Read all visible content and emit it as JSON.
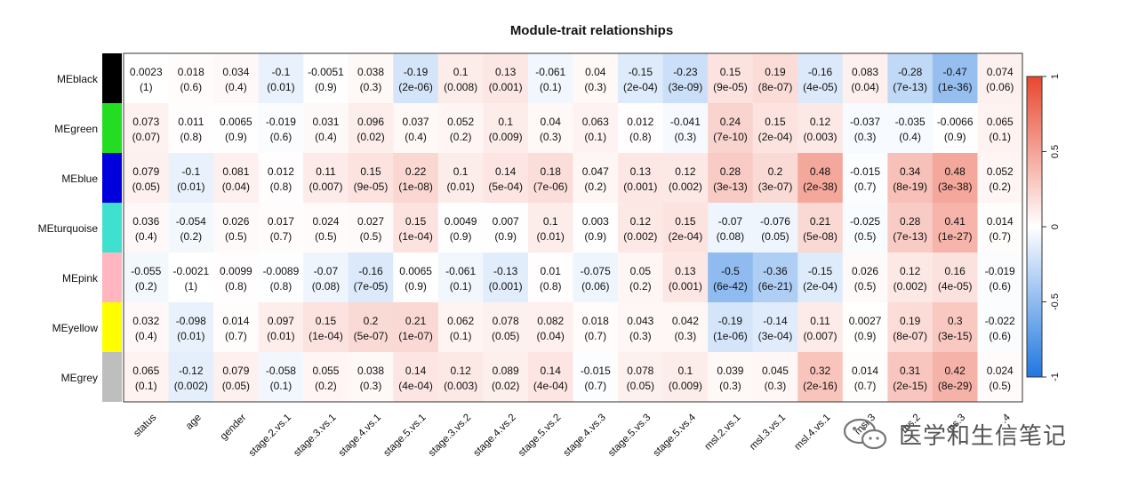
{
  "chart_data": {
    "type": "heatmap",
    "title": "Module-trait relationships",
    "rows": [
      "MEblack",
      "MEgreen",
      "MEblue",
      "MEturquoise",
      "MEpink",
      "MEyellow",
      "MEgrey"
    ],
    "row_colors": [
      "#000000",
      "#22dd22",
      "#0000dd",
      "#40e0d0",
      "#ffb6c1",
      "#ffff00",
      "#bebebe"
    ],
    "columns": [
      "status",
      "age",
      "gender",
      "stage.2.vs.1",
      "stage.3.vs.1",
      "stage.4.vs.1",
      "stage.5.vs.1",
      "stage.3.vs.2",
      "stage.4.vs.2",
      "stage.5.vs.2",
      "stage.4.vs.3",
      "stage.5.vs.3",
      "stage.5.vs.4",
      "msl.2.vs.1",
      "msl.3.vs.1",
      "msl.4.vs.1",
      "msl.3",
      "ms.2",
      "ms.3",
      ".4"
    ],
    "values": [
      [
        0.0023,
        0.018,
        0.034,
        -0.1,
        -0.0051,
        0.038,
        -0.19,
        0.1,
        0.13,
        -0.061,
        0.04,
        -0.15,
        -0.23,
        0.15,
        0.19,
        -0.16,
        0.083,
        -0.28,
        -0.47,
        0.074
      ],
      [
        0.073,
        0.011,
        0.0065,
        -0.019,
        0.031,
        0.096,
        0.037,
        0.052,
        0.1,
        0.04,
        0.063,
        0.012,
        -0.041,
        0.24,
        0.15,
        0.12,
        -0.037,
        -0.035,
        -0.0066,
        0.065
      ],
      [
        0.079,
        -0.1,
        0.081,
        0.012,
        0.11,
        0.15,
        0.22,
        0.1,
        0.14,
        0.18,
        0.047,
        0.13,
        0.12,
        0.28,
        0.2,
        0.48,
        -0.015,
        0.34,
        0.48,
        0.052
      ],
      [
        0.036,
        -0.054,
        0.026,
        0.017,
        0.024,
        0.027,
        0.15,
        0.0049,
        0.007,
        0.1,
        0.003,
        0.12,
        0.15,
        -0.07,
        -0.076,
        0.21,
        -0.025,
        0.28,
        0.41,
        0.014
      ],
      [
        -0.055,
        -0.0021,
        0.0099,
        -0.0089,
        -0.07,
        -0.16,
        0.0065,
        -0.061,
        -0.13,
        0.01,
        -0.075,
        0.05,
        0.13,
        -0.5,
        -0.36,
        -0.15,
        0.026,
        0.12,
        0.16,
        -0.019
      ],
      [
        0.032,
        -0.098,
        0.014,
        0.097,
        0.15,
        0.2,
        0.21,
        0.062,
        0.078,
        0.082,
        0.018,
        0.043,
        0.042,
        -0.19,
        -0.14,
        0.11,
        0.0027,
        0.19,
        0.3,
        -0.022
      ],
      [
        0.065,
        -0.12,
        0.079,
        -0.058,
        0.055,
        0.038,
        0.14,
        0.12,
        0.089,
        0.14,
        -0.015,
        0.078,
        0.1,
        0.039,
        0.045,
        0.32,
        0.014,
        0.31,
        0.42,
        0.024
      ]
    ],
    "value_labels": [
      [
        "0.0023",
        "0.018",
        "0.034",
        "-0.1",
        "-0.0051",
        "0.038",
        "-0.19",
        "0.1",
        "0.13",
        "-0.061",
        "0.04",
        "-0.15",
        "-0.23",
        "0.15",
        "0.19",
        "-0.16",
        "0.083",
        "-0.28",
        "-0.47",
        "0.074"
      ],
      [
        "0.073",
        "0.011",
        "0.0065",
        "-0.019",
        "0.031",
        "0.096",
        "0.037",
        "0.052",
        "0.1",
        "0.04",
        "0.063",
        "0.012",
        "-0.041",
        "0.24",
        "0.15",
        "0.12",
        "-0.037",
        "-0.035",
        "-0.0066",
        "0.065"
      ],
      [
        "0.079",
        "-0.1",
        "0.081",
        "0.012",
        "0.11",
        "0.15",
        "0.22",
        "0.1",
        "0.14",
        "0.18",
        "0.047",
        "0.13",
        "0.12",
        "0.28",
        "0.2",
        "0.48",
        "-0.015",
        "0.34",
        "0.48",
        "0.052"
      ],
      [
        "0.036",
        "-0.054",
        "0.026",
        "0.017",
        "0.024",
        "0.027",
        "0.15",
        "0.0049",
        "0.007",
        "0.1",
        "0.003",
        "0.12",
        "0.15",
        "-0.07",
        "-0.076",
        "0.21",
        "-0.025",
        "0.28",
        "0.41",
        "0.014"
      ],
      [
        "-0.055",
        "-0.0021",
        "0.0099",
        "-0.0089",
        "-0.07",
        "-0.16",
        "0.0065",
        "-0.061",
        "-0.13",
        "0.01",
        "-0.075",
        "0.05",
        "0.13",
        "-0.5",
        "-0.36",
        "-0.15",
        "0.026",
        "0.12",
        "0.16",
        "-0.019"
      ],
      [
        "0.032",
        "-0.098",
        "0.014",
        "0.097",
        "0.15",
        "0.2",
        "0.21",
        "0.062",
        "0.078",
        "0.082",
        "0.018",
        "0.043",
        "0.042",
        "-0.19",
        "-0.14",
        "0.11",
        "0.0027",
        "0.19",
        "0.3",
        "-0.022"
      ],
      [
        "0.065",
        "-0.12",
        "0.079",
        "-0.058",
        "0.055",
        "0.038",
        "0.14",
        "0.12",
        "0.089",
        "0.14",
        "-0.015",
        "0.078",
        "0.1",
        "0.039",
        "0.045",
        "0.32",
        "0.014",
        "0.31",
        "0.42",
        "0.024"
      ]
    ],
    "pvalue_labels": [
      [
        "(1)",
        "(0.6)",
        "(0.4)",
        "(0.01)",
        "(0.9)",
        "(0.3)",
        "(2e-06)",
        "(0.008)",
        "(0.001)",
        "(0.1)",
        "(0.3)",
        "(2e-04)",
        "(3e-09)",
        "(9e-05)",
        "(8e-07)",
        "(4e-05)",
        "(0.04)",
        "(7e-13)",
        "(1e-36)",
        "(0.06)"
      ],
      [
        "(0.07)",
        "(0.8)",
        "(0.9)",
        "(0.6)",
        "(0.4)",
        "(0.02)",
        "(0.4)",
        "(0.2)",
        "(0.009)",
        "(0.3)",
        "(0.1)",
        "(0.8)",
        "(0.3)",
        "(7e-10)",
        "(2e-04)",
        "(0.003)",
        "(0.3)",
        "(0.4)",
        "(0.9)",
        "(0.1)"
      ],
      [
        "(0.05)",
        "(0.01)",
        "(0.04)",
        "(0.8)",
        "(0.007)",
        "(9e-05)",
        "(1e-08)",
        "(0.01)",
        "(5e-04)",
        "(7e-06)",
        "(0.2)",
        "(0.001)",
        "(0.002)",
        "(3e-13)",
        "(3e-07)",
        "(2e-38)",
        "(0.7)",
        "(8e-19)",
        "(3e-38)",
        "(0.2)"
      ],
      [
        "(0.4)",
        "(0.2)",
        "(0.5)",
        "(0.7)",
        "(0.5)",
        "(0.5)",
        "(1e-04)",
        "(0.9)",
        "(0.9)",
        "(0.01)",
        "(0.9)",
        "(0.002)",
        "(2e-04)",
        "(0.08)",
        "(0.05)",
        "(5e-08)",
        "(0.5)",
        "(7e-13)",
        "(1e-27)",
        "(0.7)"
      ],
      [
        "(0.2)",
        "(1)",
        "(0.8)",
        "(0.8)",
        "(0.08)",
        "(7e-05)",
        "(0.9)",
        "(0.1)",
        "(0.001)",
        "(0.8)",
        "(0.06)",
        "(0.2)",
        "(0.001)",
        "(6e-42)",
        "(6e-21)",
        "(2e-04)",
        "(0.5)",
        "(0.002)",
        "(4e-05)",
        "(0.6)"
      ],
      [
        "(0.4)",
        "(0.01)",
        "(0.7)",
        "(0.01)",
        "(1e-04)",
        "(5e-07)",
        "(1e-07)",
        "(0.1)",
        "(0.05)",
        "(0.04)",
        "(0.7)",
        "(0.3)",
        "(0.3)",
        "(1e-06)",
        "(3e-04)",
        "(0.007)",
        "(0.9)",
        "(8e-07)",
        "(3e-15)",
        "(0.6)"
      ],
      [
        "(0.1)",
        "(0.002)",
        "(0.05)",
        "(0.1)",
        "(0.2)",
        "(0.3)",
        "(4e-04)",
        "(0.003)",
        "(0.02)",
        "(4e-04)",
        "(0.7)",
        "(0.05)",
        "(0.009)",
        "(0.3)",
        "(0.3)",
        "(2e-16)",
        "(0.7)",
        "(2e-15)",
        "(8e-29)",
        "(0.5)"
      ]
    ],
    "color_scale": {
      "min": -1,
      "max": 1,
      "low": "#1f77e0",
      "mid": "#ffffff",
      "high": "#e8472f"
    },
    "legend": {
      "position": "right",
      "ticks": [
        "1",
        "0.5",
        "0",
        "-0.5",
        "-1"
      ]
    }
  },
  "watermark": {
    "text": "医学和生信笔记",
    "icon": "wechat-icon"
  }
}
